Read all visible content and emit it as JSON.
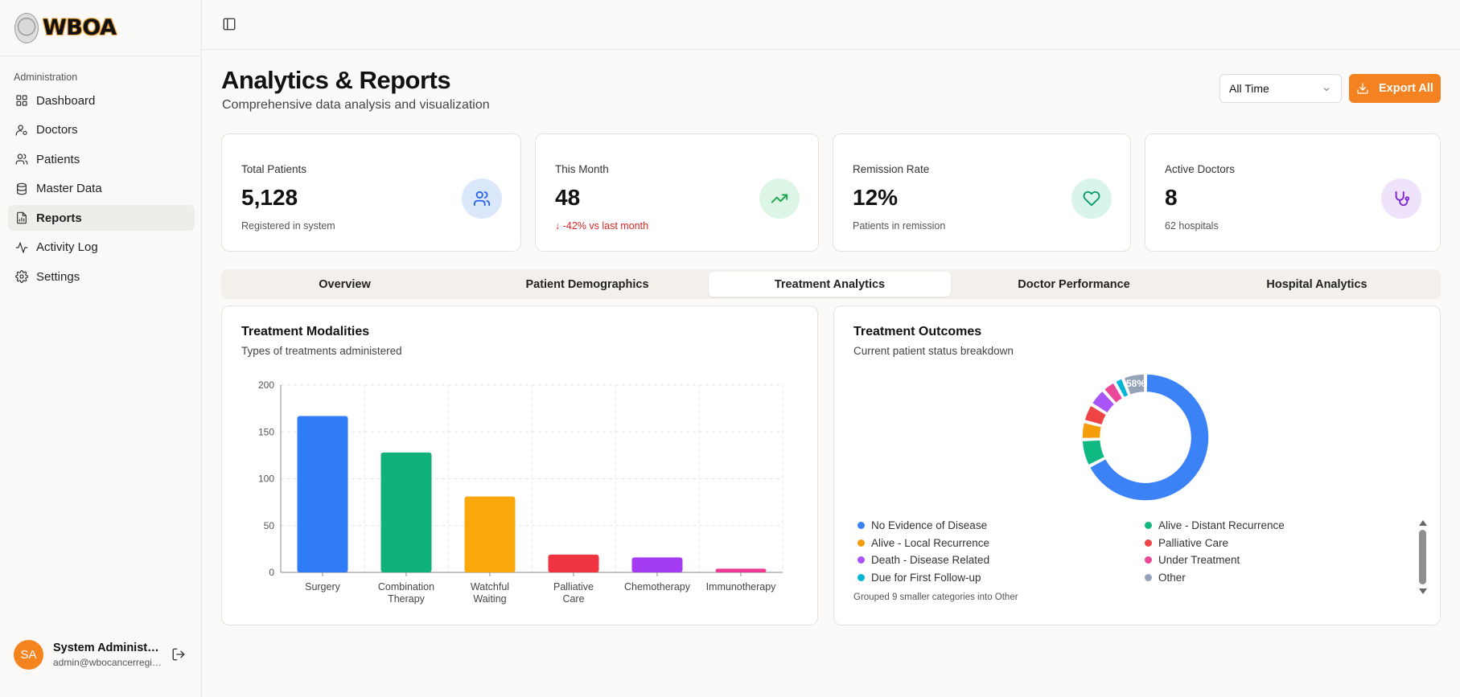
{
  "app": {
    "logo_text": "WBOA"
  },
  "sidebar": {
    "section_label": "Administration",
    "items": [
      {
        "label": "Dashboard",
        "icon": "grid-icon"
      },
      {
        "label": "Doctors",
        "icon": "user-key-icon"
      },
      {
        "label": "Patients",
        "icon": "users-icon"
      },
      {
        "label": "Master Data",
        "icon": "database-icon"
      },
      {
        "label": "Reports",
        "icon": "report-icon",
        "active": true
      },
      {
        "label": "Activity Log",
        "icon": "activity-icon"
      },
      {
        "label": "Settings",
        "icon": "gear-icon"
      }
    ],
    "user": {
      "initials": "SA",
      "name": "System Administrator",
      "email": "admin@wbocancerregistry.org"
    }
  },
  "header": {
    "title": "Analytics & Reports",
    "subtitle": "Comprehensive data analysis and visualization",
    "time_filter": "All Time",
    "export_label": "Export All"
  },
  "stats": [
    {
      "label": "Total Patients",
      "value": "5,128",
      "sub": "Registered in system",
      "icon": "users-icon",
      "color": "#2563eb",
      "bg": "#dbe7fb"
    },
    {
      "label": "This Month",
      "value": "48",
      "sub": "-42% vs last month",
      "icon": "trending-up-icon",
      "color": "#16a34a",
      "bg": "#dcf5e4"
    },
    {
      "label": "Remission Rate",
      "value": "12%",
      "sub": "Patients in remission",
      "icon": "heart-icon",
      "color": "#059669",
      "bg": "#d9f5ea"
    },
    {
      "label": "Active Doctors",
      "value": "8",
      "sub": "62 hospitals",
      "icon": "stethoscope-icon",
      "color": "#7e22ce",
      "bg": "#efe2fb"
    }
  ],
  "tabs": [
    "Overview",
    "Patient Demographics",
    "Treatment Analytics",
    "Doctor Performance",
    "Hospital Analytics"
  ],
  "active_tab": "Treatment Analytics",
  "modalities_card": {
    "title": "Treatment Modalities",
    "subtitle": "Types of treatments administered"
  },
  "outcomes_card": {
    "title": "Treatment Outcomes",
    "subtitle": "Current patient status breakdown",
    "note": "Grouped 9 smaller categories into Other"
  },
  "chart_data": [
    {
      "type": "bar",
      "title": "Treatment Modalities",
      "categories": [
        "Surgery",
        "Combination Therapy",
        "Watchful Waiting",
        "Palliative Care",
        "Chemotherapy",
        "Immunotherapy"
      ],
      "values": [
        167,
        128,
        81,
        19,
        16,
        4
      ],
      "colors": [
        "#2f7cf6",
        "#10b07a",
        "#f9a70b",
        "#ef3340",
        "#a43cf4",
        "#ee3a93"
      ],
      "ylim": [
        0,
        200
      ],
      "yticks": [
        0,
        50,
        100,
        150,
        200
      ],
      "grid": true
    },
    {
      "type": "pie",
      "title": "Treatment Outcomes",
      "labels": [
        "No Evidence of Disease",
        "Alive - Distant Recurrence",
        "Alive - Local Recurrence",
        "Palliative Care",
        "Death - Disease Related",
        "Under Treatment",
        "Due for First Follow-up",
        "Other"
      ],
      "values": [
        58,
        6,
        4,
        4,
        4,
        3,
        2,
        5
      ],
      "colors": [
        "#3b82f6",
        "#10b981",
        "#f59e0b",
        "#ef4444",
        "#a855f7",
        "#ec4899",
        "#06b6d4",
        "#94a3b8"
      ],
      "data_labels": [
        "58%"
      ]
    }
  ]
}
